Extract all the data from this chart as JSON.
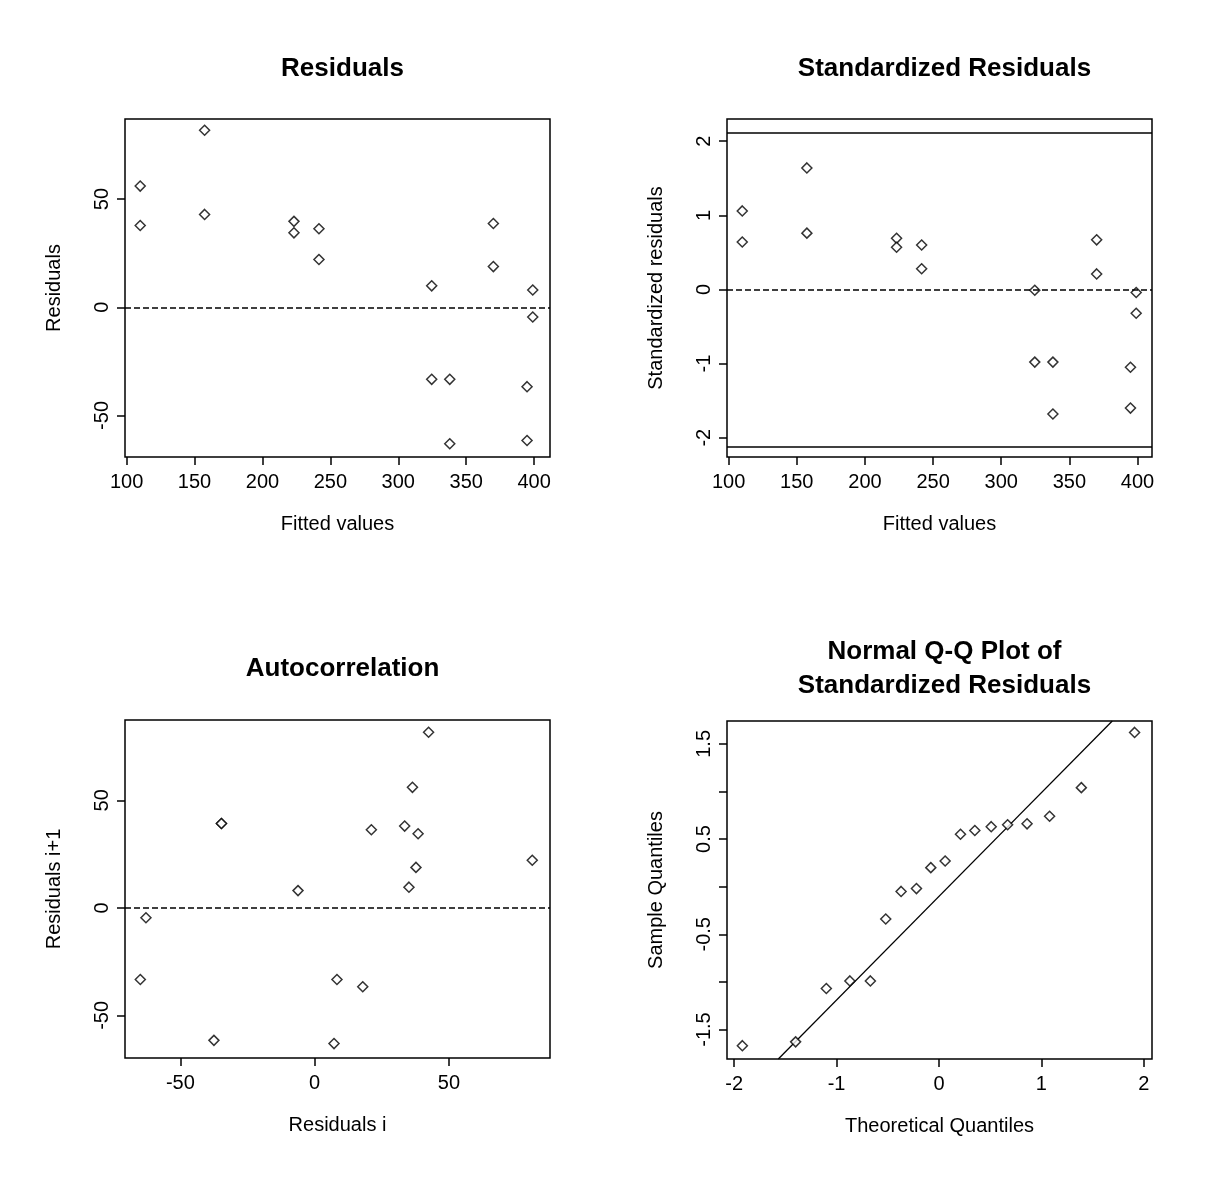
{
  "chart_data": [
    {
      "type": "scatter",
      "title": "Residuals",
      "xlabel": "Fitted values",
      "ylabel": "Residuals",
      "xlim": [
        98.8,
        411.7
      ],
      "ylim": [
        -69.2,
        87
      ],
      "xticks": [
        100,
        150,
        200,
        250,
        300,
        350,
        400
      ],
      "yticks": [
        -50,
        0,
        50
      ],
      "marker": "diamond",
      "grid": false,
      "series": [
        {
          "color": "#000000",
          "x": [
            110,
            110,
            157.4,
            157.4,
            223.2,
            223.2,
            241.6,
            241.6,
            324.6,
            324.6,
            337.9,
            337.9,
            370,
            370,
            399,
            399,
            394.8,
            394.8
          ],
          "values": [
            56,
            37.8,
            81.8,
            42.9,
            39.7,
            34.4,
            36.3,
            22.1,
            9.9,
            -33.3,
            -33.3,
            -63.1,
            38.7,
            18.8,
            8,
            -4.5,
            -36.7,
            -61.6
          ]
        }
      ],
      "ref_lines": [
        {
          "axis": "y",
          "value": 0,
          "line_style": "dashed",
          "color": "#000000"
        }
      ]
    },
    {
      "type": "scatter",
      "title": "Standardized Residuals",
      "xlabel": "Fitted values",
      "ylabel": "Standardized residuals",
      "xlim": [
        98.8,
        410.6
      ],
      "ylim": [
        -2.26,
        2.3
      ],
      "xticks": [
        100,
        150,
        200,
        250,
        300,
        350,
        400
      ],
      "yticks": [
        -2,
        -1,
        0,
        1,
        2
      ],
      "marker": "diamond",
      "grid": false,
      "series": [
        {
          "color": "#000000",
          "x": [
            110,
            110,
            157.4,
            157.4,
            223.2,
            223.2,
            241.6,
            241.6,
            324.6,
            324.6,
            337.9,
            337.9,
            370,
            370,
            399,
            399,
            394.8,
            394.8
          ],
          "values": [
            1.06,
            0.64,
            1.64,
            0.76,
            0.69,
            0.57,
            0.6,
            0.28,
            -0.01,
            -0.98,
            -0.98,
            -1.68,
            0.67,
            0.21,
            -0.04,
            -0.32,
            -1.05,
            -1.6
          ]
        }
      ],
      "ref_lines": [
        {
          "axis": "y",
          "value": 0,
          "line_style": "dashed",
          "color": "#000000"
        },
        {
          "axis": "y",
          "value": 2.12,
          "line_style": "solid",
          "color": "#000000"
        },
        {
          "axis": "y",
          "value": -2.12,
          "line_style": "solid",
          "color": "#000000"
        }
      ]
    },
    {
      "type": "scatter",
      "title": "Autocorrelation",
      "xlabel": "Residuals i",
      "ylabel": "Residuals i+1",
      "xlim": [
        -70.6,
        87.6
      ],
      "ylim": [
        -69.8,
        87.3
      ],
      "xticks": [
        -50,
        0,
        50
      ],
      "yticks": [
        -50,
        0,
        50
      ],
      "marker": "diamond",
      "grid": false,
      "series": [
        {
          "color": "#000000",
          "x": [
            42.4,
            36.4,
            -34.7,
            -34.7,
            21.1,
            33.5,
            38.5,
            81,
            37.7,
            -6.2,
            35.1,
            -62.8,
            -64.9,
            8.3,
            17.9,
            -37.5,
            7.2
          ],
          "values": [
            81.6,
            56,
            39.2,
            39.2,
            36.3,
            38,
            34.4,
            22.1,
            18.8,
            8,
            9.6,
            -4.6,
            -33.3,
            -33.3,
            -36.7,
            -61.6,
            -63.1
          ]
        }
      ],
      "ref_lines": [
        {
          "axis": "y",
          "value": 0,
          "line_style": "dashed",
          "color": "#000000"
        }
      ]
    },
    {
      "type": "scatter",
      "title": "Normal Q-Q Plot of\nStandardized Residuals",
      "xlabel": "Theoretical Quantiles",
      "ylabel": "Sample Quantiles",
      "xlim": [
        -2.07,
        2.08
      ],
      "ylim": [
        -1.81,
        1.74
      ],
      "xticks": [
        -2,
        -1,
        0,
        1,
        2
      ],
      "yticks": [
        -1.5,
        {
          "value": -1,
          "label": null
        },
        -0.5,
        {
          "value": 0,
          "label": null
        },
        0.5,
        {
          "value": 1,
          "label": null
        },
        1.5
      ],
      "grid": false,
      "series": [
        {
          "marker": "diamond",
          "color": "#000000",
          "x": [
            -1.92,
            -1.4,
            -1.1,
            -0.87,
            -0.67,
            -0.52,
            -0.37,
            -0.22,
            -0.08,
            0.06,
            0.21,
            0.35,
            0.51,
            0.67,
            0.86,
            1.08,
            1.39,
            1.91
          ],
          "values": [
            -1.67,
            -1.63,
            -1.07,
            -0.99,
            -0.99,
            -0.34,
            -0.05,
            -0.02,
            0.2,
            0.27,
            0.55,
            0.59,
            0.63,
            0.65,
            0.66,
            0.74,
            1.04,
            1.62
          ]
        },
        {
          "type": "line",
          "marker": "none",
          "color": "#000000",
          "x": [
            -1.569,
            1.692
          ],
          "values": [
            -1.81,
            1.74
          ]
        }
      ]
    }
  ]
}
